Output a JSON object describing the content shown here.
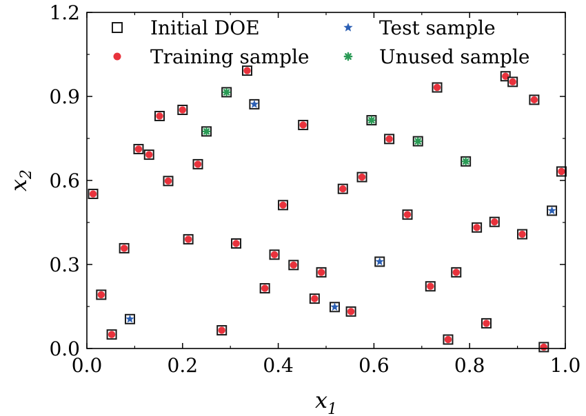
{
  "chart_data": {
    "type": "scatter",
    "title": "",
    "xlabel": {
      "symbol": "x",
      "subscript": "1"
    },
    "ylabel": {
      "symbol": "x",
      "subscript": "2"
    },
    "xlim": [
      0.0,
      1.0
    ],
    "ylim": [
      0.0,
      1.2
    ],
    "xticks": [
      0.0,
      0.2,
      0.4,
      0.6,
      0.8,
      1.0
    ],
    "yticks": [
      0.0,
      0.3,
      0.6,
      0.9,
      1.2
    ],
    "xtick_labels": [
      "0.0",
      "0.2",
      "0.4",
      "0.6",
      "0.8",
      "1.0"
    ],
    "ytick_labels": [
      "0.0",
      "0.3",
      "0.6",
      "0.9",
      "1.2"
    ],
    "grid": false,
    "legend_position": "top",
    "legend": [
      {
        "key": "initial",
        "label": "Initial DOE"
      },
      {
        "key": "test",
        "label": "Test sample"
      },
      {
        "key": "training",
        "label": "Training sample"
      },
      {
        "key": "unused",
        "label": "Unused sample"
      }
    ],
    "colors": {
      "training": "#e8323c",
      "test": "#2b5fb4",
      "unused": "#2a9a55",
      "initial_edge": "#1a1a1a",
      "axis": "#000000"
    },
    "series": [
      {
        "name": "Training sample",
        "key": "training",
        "points": [
          [
            0.013,
            0.552
          ],
          [
            0.03,
            0.192
          ],
          [
            0.052,
            0.05
          ],
          [
            0.078,
            0.358
          ],
          [
            0.108,
            0.712
          ],
          [
            0.13,
            0.692
          ],
          [
            0.152,
            0.83
          ],
          [
            0.17,
            0.598
          ],
          [
            0.2,
            0.852
          ],
          [
            0.212,
            0.39
          ],
          [
            0.232,
            0.658
          ],
          [
            0.282,
            0.065
          ],
          [
            0.312,
            0.375
          ],
          [
            0.335,
            0.992
          ],
          [
            0.372,
            0.215
          ],
          [
            0.392,
            0.335
          ],
          [
            0.41,
            0.512
          ],
          [
            0.432,
            0.298
          ],
          [
            0.452,
            0.798
          ],
          [
            0.476,
            0.178
          ],
          [
            0.49,
            0.272
          ],
          [
            0.535,
            0.57
          ],
          [
            0.552,
            0.132
          ],
          [
            0.575,
            0.612
          ],
          [
            0.632,
            0.748
          ],
          [
            0.67,
            0.478
          ],
          [
            0.718,
            0.222
          ],
          [
            0.732,
            0.932
          ],
          [
            0.755,
            0.032
          ],
          [
            0.772,
            0.272
          ],
          [
            0.815,
            0.432
          ],
          [
            0.835,
            0.09
          ],
          [
            0.852,
            0.452
          ],
          [
            0.875,
            0.972
          ],
          [
            0.89,
            0.952
          ],
          [
            0.91,
            0.408
          ],
          [
            0.935,
            0.888
          ],
          [
            0.955,
            0.005
          ],
          [
            0.992,
            0.632
          ]
        ]
      },
      {
        "name": "Test sample",
        "key": "test",
        "points": [
          [
            0.09,
            0.105
          ],
          [
            0.35,
            0.872
          ],
          [
            0.518,
            0.148
          ],
          [
            0.612,
            0.31
          ],
          [
            0.972,
            0.492
          ]
        ]
      },
      {
        "name": "Unused sample",
        "key": "unused",
        "points": [
          [
            0.25,
            0.775
          ],
          [
            0.292,
            0.915
          ],
          [
            0.595,
            0.815
          ],
          [
            0.692,
            0.74
          ],
          [
            0.792,
            0.668
          ]
        ]
      }
    ]
  }
}
